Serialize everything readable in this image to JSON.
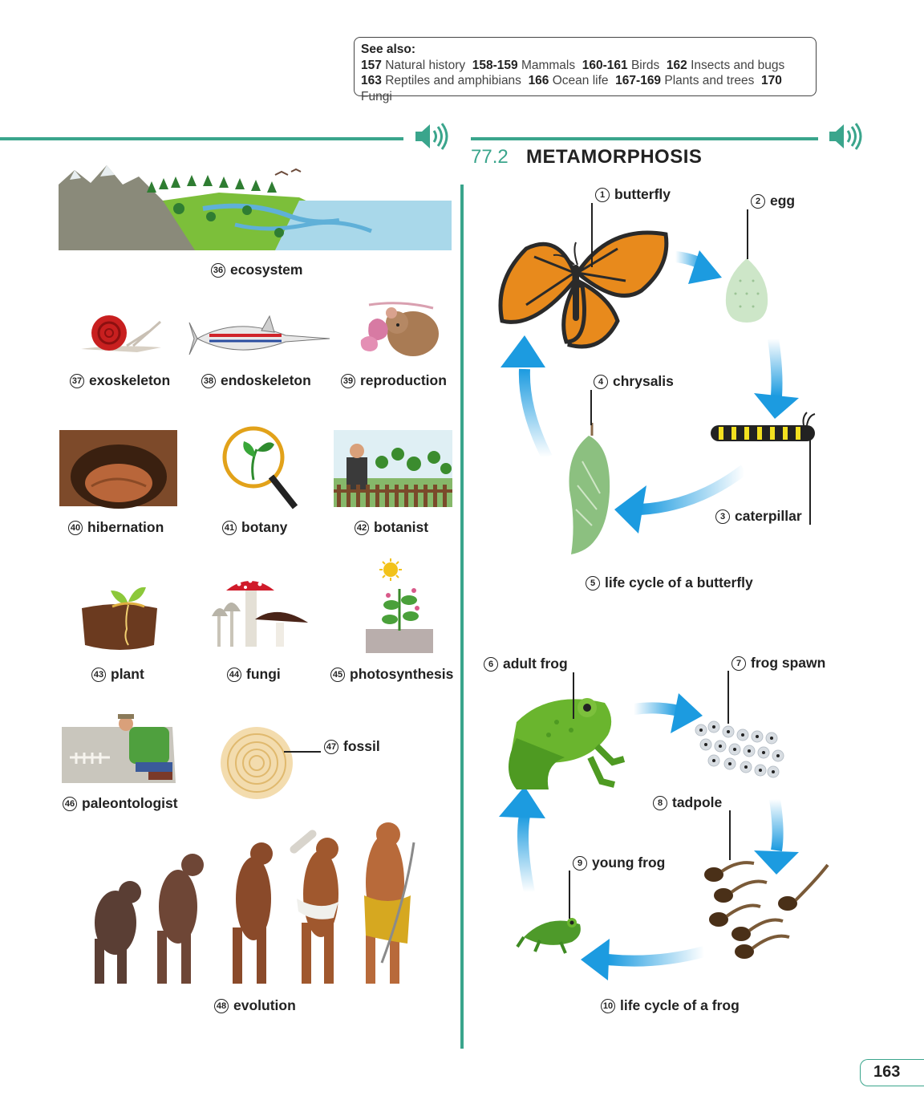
{
  "see_also": {
    "heading": "See also:",
    "line1": [
      {
        "num": "157",
        "text": "Natural history"
      },
      {
        "num": "158-159",
        "text": "Mammals"
      },
      {
        "num": "160-161",
        "text": "Birds"
      },
      {
        "num": "162",
        "text": "Insects and bugs"
      }
    ],
    "line2": [
      {
        "num": "163",
        "text": "Reptiles and amphibians"
      },
      {
        "num": "166",
        "text": "Ocean life"
      },
      {
        "num": "167-169",
        "text": "Plants and trees"
      },
      {
        "num": "170",
        "text": "Fungi"
      }
    ]
  },
  "section": {
    "number": "77.2",
    "title": "METAMORPHOSIS"
  },
  "left_items": [
    {
      "n": "36",
      "label": "ecosystem"
    },
    {
      "n": "37",
      "label": "exoskeleton"
    },
    {
      "n": "38",
      "label": "endoskeleton"
    },
    {
      "n": "39",
      "label": "reproduction"
    },
    {
      "n": "40",
      "label": "hibernation"
    },
    {
      "n": "41",
      "label": "botany"
    },
    {
      "n": "42",
      "label": "botanist"
    },
    {
      "n": "43",
      "label": "plant"
    },
    {
      "n": "44",
      "label": "fungi"
    },
    {
      "n": "45",
      "label": "photosynthesis"
    },
    {
      "n": "46",
      "label": "paleontologist"
    },
    {
      "n": "47",
      "label": "fossil"
    },
    {
      "n": "48",
      "label": "evolution"
    }
  ],
  "right_items": [
    {
      "n": "1",
      "label": "butterfly"
    },
    {
      "n": "2",
      "label": "egg"
    },
    {
      "n": "3",
      "label": "caterpillar"
    },
    {
      "n": "4",
      "label": "chrysalis"
    },
    {
      "n": "5",
      "label": "life cycle of a butterfly"
    },
    {
      "n": "6",
      "label": "adult frog"
    },
    {
      "n": "7",
      "label": "frog spawn"
    },
    {
      "n": "8",
      "label": "tadpole"
    },
    {
      "n": "9",
      "label": "young frog"
    },
    {
      "n": "10",
      "label": "life cycle of a frog"
    }
  ],
  "page_number": "163",
  "colors": {
    "accent": "#3aa58c",
    "arrow": "#1c9be0"
  },
  "icons": [
    "speaker-icon"
  ]
}
